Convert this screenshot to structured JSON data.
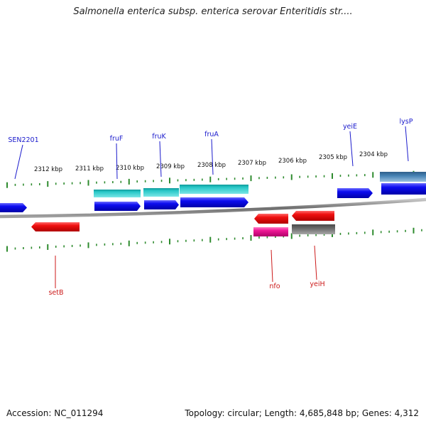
{
  "title": "Salmonella enterica subsp. enterica serovar Enteritidis str....",
  "footer": {
    "accession": "Accession: NC_011294",
    "summary": "Topology: circular; Length: 4,685,848 bp; Genes: 4,312"
  },
  "colors": {
    "background": "#ffffff",
    "backbone": "#808080",
    "tick": "#2e8b2e",
    "tick_label": "#111111",
    "label_forward": "#1a1acc",
    "label_reverse": "#cc1a1a",
    "gene_blue": "#0d0df0",
    "gene_cyan": "#28c8c8",
    "gene_red": "#f01010",
    "gene_magenta": "#f01896",
    "gene_gray": "#6a6a6a",
    "gene_steel": "#4682b4"
  },
  "scale": {
    "unit": "kbp",
    "labels": [
      "2312 kbp",
      "2311 kbp",
      "2310 kbp",
      "2309 kbp",
      "2308 kbp",
      "2307 kbp",
      "2306 kbp",
      "2305 kbp",
      "2304 kbp"
    ]
  },
  "gene_labels": {
    "forward": [
      "SEN2201",
      "fruF",
      "fruK",
      "fruA",
      "yeiE",
      "lysP"
    ],
    "reverse": [
      "setB",
      "nfo",
      "yeiH"
    ]
  },
  "genes": [
    {
      "strand": "forward",
      "color": "blue",
      "label": "SEN2201"
    },
    {
      "strand": "forward",
      "color": "cyan",
      "label": "fruF"
    },
    {
      "strand": "forward",
      "color": "blue",
      "label": "fruF"
    },
    {
      "strand": "forward",
      "color": "cyan",
      "label": "fruK"
    },
    {
      "strand": "forward",
      "color": "blue",
      "label": "fruK"
    },
    {
      "strand": "forward",
      "color": "cyan",
      "label": "fruA"
    },
    {
      "strand": "forward",
      "color": "blue",
      "label": "fruA"
    },
    {
      "strand": "forward",
      "color": "blue",
      "label": "yeiE"
    },
    {
      "strand": "forward",
      "color": "steel",
      "label": "lysP"
    },
    {
      "strand": "forward",
      "color": "blue",
      "label": "lysP"
    },
    {
      "strand": "reverse",
      "color": "red",
      "label": "setB"
    },
    {
      "strand": "reverse",
      "color": "red",
      "label": "nfo"
    },
    {
      "strand": "reverse",
      "color": "magenta",
      "label": "nfo"
    },
    {
      "strand": "reverse",
      "color": "red",
      "label": "yeiH"
    },
    {
      "strand": "reverse",
      "color": "gray",
      "label": "yeiH"
    }
  ]
}
